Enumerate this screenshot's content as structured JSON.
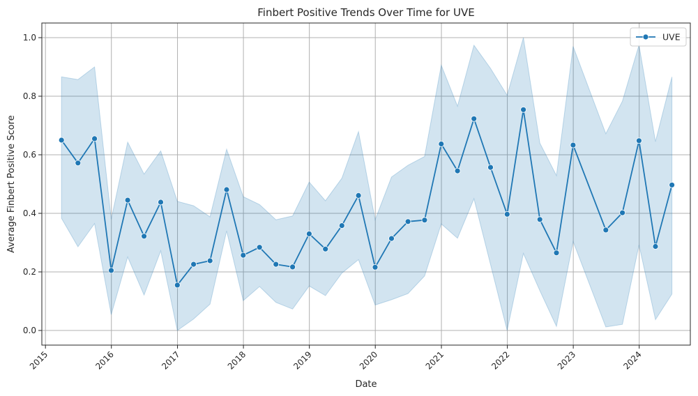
{
  "chart_data": {
    "type": "line",
    "title": "Finbert Positive Trends Over Time for UVE",
    "xlabel": "Date",
    "ylabel": "Average Finbert Positive Score",
    "xlim": [
      "2014-12-12",
      "2024-10-10"
    ],
    "ylim": [
      -0.05,
      1.05
    ],
    "x_ticks": [
      "2015",
      "2016",
      "2017",
      "2018",
      "2019",
      "2020",
      "2021",
      "2022",
      "2023",
      "2024"
    ],
    "y_ticks": [
      "0.0",
      "0.2",
      "0.4",
      "0.6",
      "0.8",
      "1.0"
    ],
    "grid": true,
    "legend_position": "top-right",
    "colors": {
      "line": "#1f77b4",
      "band": "#1f77b4"
    },
    "series": [
      {
        "name": "UVE",
        "marker": "circle",
        "x": [
          "2015-03-31",
          "2015-06-30",
          "2015-09-30",
          "2015-12-31",
          "2016-03-31",
          "2016-06-30",
          "2016-09-30",
          "2016-12-31",
          "2017-03-31",
          "2017-06-30",
          "2017-09-30",
          "2017-12-31",
          "2018-03-31",
          "2018-06-30",
          "2018-09-30",
          "2018-12-31",
          "2019-03-31",
          "2019-06-30",
          "2019-09-30",
          "2019-12-31",
          "2020-03-31",
          "2020-06-30",
          "2020-09-30",
          "2020-12-31",
          "2021-03-31",
          "2021-06-30",
          "2021-09-30",
          "2021-12-31",
          "2022-03-31",
          "2022-06-30",
          "2022-09-30",
          "2022-12-31",
          "2023-06-30",
          "2023-09-30",
          "2023-12-31",
          "2024-03-31",
          "2024-06-30"
        ],
        "values": [
          0.65,
          0.572,
          0.655,
          0.205,
          0.445,
          0.322,
          0.438,
          0.155,
          0.226,
          0.238,
          0.481,
          0.257,
          0.284,
          0.226,
          0.217,
          0.33,
          0.278,
          0.358,
          0.461,
          0.216,
          0.314,
          0.372,
          0.377,
          0.637,
          0.545,
          0.723,
          0.557,
          0.397,
          0.754,
          0.379,
          0.265,
          0.633,
          0.343,
          0.402,
          0.648,
          0.287,
          0.497
        ],
        "ci_upper": [
          0.866,
          0.857,
          0.9,
          0.38,
          0.643,
          0.534,
          0.613,
          0.441,
          0.426,
          0.388,
          0.619,
          0.457,
          0.43,
          0.378,
          0.391,
          0.507,
          0.443,
          0.52,
          0.679,
          0.378,
          0.524,
          0.564,
          0.594,
          0.906,
          0.766,
          0.974,
          0.895,
          0.803,
          1.0,
          0.64,
          0.529,
          0.97,
          0.672,
          0.783,
          0.975,
          0.645,
          0.866
        ],
        "ci_lower": [
          0.383,
          0.286,
          0.365,
          0.054,
          0.251,
          0.121,
          0.272,
          0.0,
          0.039,
          0.09,
          0.34,
          0.102,
          0.15,
          0.096,
          0.073,
          0.152,
          0.119,
          0.196,
          0.242,
          0.087,
          0.105,
          0.126,
          0.186,
          0.364,
          0.315,
          0.45,
          0.225,
          0.0,
          0.263,
          0.136,
          0.014,
          0.304,
          0.012,
          0.021,
          0.292,
          0.037,
          0.124
        ]
      }
    ]
  }
}
